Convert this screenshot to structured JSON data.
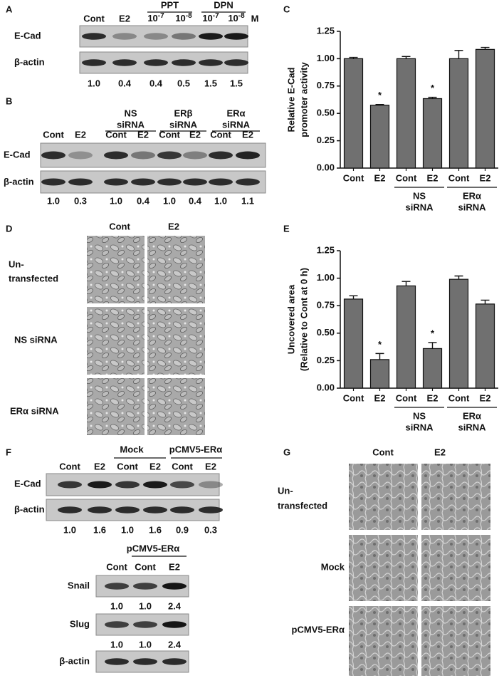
{
  "panels": [
    {
      "label": "A",
      "lanes": [
        "Cont",
        "E2",
        {
          "base": "10",
          "sup": "-7"
        },
        {
          "base": "10",
          "sup": "-8"
        },
        {
          "base": "10",
          "sup": "-7"
        },
        {
          "base": "10",
          "sup": "-8"
        }
      ],
      "unit": "M",
      "groups": [
        "PPT",
        "DPN"
      ],
      "rows": [
        "E-Cad",
        "β-actin"
      ],
      "quant": [
        "1.0",
        "0.4",
        "0.4",
        "0.5",
        "1.5",
        "1.5"
      ]
    },
    {
      "label": "B",
      "lanes": [
        "Cont",
        "E2",
        "Cont",
        "E2",
        "Cont",
        "E2",
        "Cont",
        "E2"
      ],
      "groups": [
        [
          "NS",
          "siRNA"
        ],
        [
          "ERβ",
          "siRNA"
        ],
        [
          "ERα",
          "siRNA"
        ]
      ],
      "rows": [
        "E-Cad",
        "β-actin"
      ],
      "quant": [
        "1.0",
        "0.3",
        "1.0",
        "0.4",
        "1.0",
        "0.4",
        "1.0",
        "1.1"
      ]
    },
    {
      "label": "D",
      "columns": [
        "Cont",
        "E2"
      ],
      "rows": [
        [
          "Un-",
          "transfected"
        ],
        [
          "NS siRNA"
        ],
        [
          "ERα siRNA"
        ]
      ]
    },
    {
      "label": "F",
      "lanes": [
        "Cont",
        "E2",
        "Cont",
        "E2",
        "Cont",
        "E2"
      ],
      "groups": [
        "Mock",
        "pCMV5-ERα"
      ],
      "rows": [
        "E-Cad",
        "β-actin"
      ],
      "quant": [
        "1.0",
        "1.6",
        "1.0",
        "1.6",
        "0.9",
        "0.3"
      ],
      "blot2": {
        "group": "pCMV5-ERα",
        "lanes": [
          "Cont",
          "Cont",
          "E2"
        ],
        "rows": [
          "Snail",
          "Slug",
          "β-actin"
        ],
        "quant": [
          [
            "1.0",
            "1.0",
            "2.4"
          ],
          [
            "1.0",
            "1.0",
            "2.4"
          ]
        ]
      }
    },
    {
      "label": "G",
      "columns": [
        "Cont",
        "E2"
      ],
      "rows": [
        [
          "Un-",
          "transfected"
        ],
        [
          "Mock"
        ],
        [
          "pCMV5-ERα"
        ]
      ]
    }
  ],
  "chart_data": [
    {
      "type": "bar",
      "panel": "C",
      "y_label": [
        "Relative E-Cad",
        "promoter activity"
      ],
      "categories": [
        "Cont",
        "E2",
        "Cont",
        "E2",
        "Cont",
        "E2"
      ],
      "values": [
        1.0,
        0.575,
        1.0,
        0.635,
        1.0,
        1.085
      ],
      "errors": [
        0.012,
        0.006,
        0.02,
        0.012,
        0.075,
        0.018
      ],
      "significance": [
        null,
        "*",
        null,
        "*",
        null,
        null
      ],
      "groups": [
        [
          "NS",
          "siRNA"
        ],
        [
          "ERα",
          "siRNA"
        ]
      ],
      "color": "#707070",
      "ylim": [
        0,
        1.25
      ],
      "yticks": [
        {
          "value": 0,
          "label": "0.00"
        },
        {
          "value": 0.25,
          "label": "0.25"
        },
        {
          "value": 0.5,
          "label": "0.50"
        },
        {
          "value": 0.75,
          "label": "0.75"
        },
        {
          "value": 1,
          "label": "1.00"
        },
        {
          "value": 1.25,
          "label": "1.25"
        }
      ]
    },
    {
      "type": "bar",
      "panel": "E",
      "y_label": [
        "Uncovered area",
        "(Relative to Cont at 0 h)"
      ],
      "categories": [
        "Cont",
        "E2",
        "Cont",
        "E2",
        "Cont",
        "E2"
      ],
      "values": [
        0.81,
        0.26,
        0.93,
        0.36,
        0.99,
        0.765
      ],
      "errors": [
        0.03,
        0.055,
        0.04,
        0.055,
        0.03,
        0.035
      ],
      "significance": [
        null,
        "*",
        null,
        "*",
        null,
        null
      ],
      "groups": [
        [
          "NS",
          "siRNA"
        ],
        [
          "ERα",
          "siRNA"
        ]
      ],
      "color": "#707070",
      "ylim": [
        0,
        1.25
      ],
      "yticks": [
        {
          "value": 0,
          "label": "0.00"
        },
        {
          "value": 0.25,
          "label": "0.25"
        },
        {
          "value": 0.5,
          "label": "0.50"
        },
        {
          "value": 0.75,
          "label": "0.75"
        },
        {
          "value": 1,
          "label": "1.00"
        },
        {
          "value": 1.25,
          "label": "1.25"
        }
      ]
    }
  ]
}
